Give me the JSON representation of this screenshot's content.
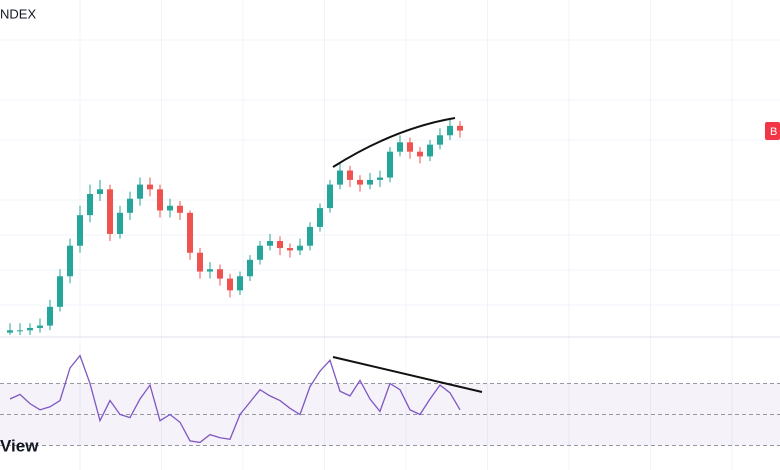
{
  "header": {
    "title": "NDEX"
  },
  "badge": "B",
  "logo": "View",
  "chart_data": [
    {
      "type": "candlestick",
      "up_color": "#26a69a",
      "down_color": "#ef5350",
      "ylim": [
        0,
        100
      ],
      "open": [
        1,
        2,
        2,
        3,
        4,
        12,
        25,
        38,
        51,
        60,
        62,
        43,
        52,
        58,
        64,
        62,
        53,
        55,
        52,
        35,
        27,
        28,
        24,
        19,
        25,
        32,
        38,
        40,
        37,
        36,
        38,
        46,
        54,
        64,
        70,
        66,
        64,
        66,
        67,
        78,
        82,
        78,
        76,
        81,
        85,
        89
      ],
      "high": [
        5,
        5,
        5,
        7,
        15,
        28,
        41,
        55,
        64,
        66,
        64,
        55,
        61,
        67,
        67,
        64,
        58,
        57,
        53,
        37,
        31,
        30,
        26,
        27,
        34,
        40,
        43,
        42,
        39,
        41,
        48,
        56,
        66,
        73,
        72,
        68,
        69,
        70,
        80,
        85,
        84,
        80,
        83,
        88,
        92,
        91
      ],
      "low": [
        0,
        0,
        0,
        1,
        2,
        10,
        22,
        35,
        48,
        57,
        40,
        41,
        49,
        55,
        59,
        50,
        50,
        49,
        32,
        24,
        24,
        21,
        16,
        17,
        23,
        30,
        36,
        34,
        33,
        34,
        36,
        44,
        52,
        62,
        63,
        61,
        62,
        63,
        65,
        76,
        75,
        73,
        74,
        79,
        83,
        84
      ],
      "close": [
        2,
        2,
        3,
        4,
        12,
        25,
        38,
        51,
        60,
        62,
        43,
        52,
        58,
        64,
        62,
        53,
        55,
        52,
        35,
        27,
        28,
        24,
        19,
        25,
        32,
        38,
        40,
        37,
        36,
        38,
        46,
        54,
        64,
        70,
        66,
        64,
        66,
        67,
        78,
        82,
        78,
        76,
        81,
        85,
        89,
        87
      ]
    },
    {
      "type": "line",
      "color": "#7e57c2",
      "ylim": [
        0,
        100
      ],
      "yticks": [
        30,
        50,
        70
      ],
      "values": [
        60,
        63,
        57,
        53,
        55,
        59,
        80,
        88,
        70,
        46,
        59,
        50,
        48,
        60,
        69,
        46,
        50,
        45,
        33,
        32,
        37,
        35,
        34,
        50,
        58,
        66,
        62,
        59,
        54,
        50,
        68,
        78,
        85,
        65,
        62,
        72,
        60,
        52,
        70,
        66,
        53,
        50,
        60,
        69,
        64,
        53
      ]
    }
  ]
}
